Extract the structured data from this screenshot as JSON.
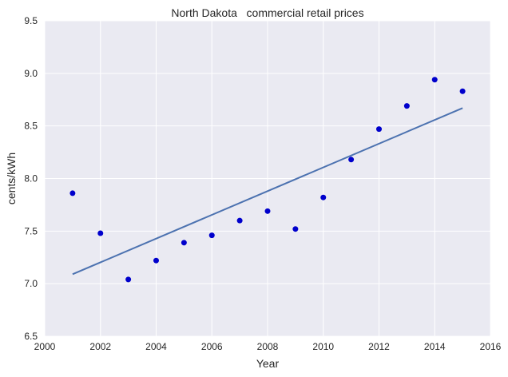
{
  "chart_data": {
    "type": "scatter",
    "title": "North Dakota   commercial retail prices",
    "xlabel": "Year",
    "ylabel": "cents/kWh",
    "xlim": [
      2000,
      2016
    ],
    "ylim": [
      6.5,
      9.5
    ],
    "xticks": [
      "2000",
      "2002",
      "2004",
      "2006",
      "2008",
      "2010",
      "2012",
      "2014",
      "2016"
    ],
    "yticks": [
      "6.5",
      "7.0",
      "7.5",
      "8.0",
      "8.5",
      "9.0",
      "9.5"
    ],
    "grid": true,
    "background": "#eaeaf2",
    "series": [
      {
        "type": "scatter",
        "color": "#0000cc",
        "x": [
          2001,
          2002,
          2003,
          2004,
          2005,
          2006,
          2007,
          2008,
          2009,
          2010,
          2011,
          2012,
          2013,
          2014,
          2015
        ],
        "y": [
          7.86,
          7.48,
          7.04,
          7.22,
          7.39,
          7.46,
          7.6,
          7.69,
          7.52,
          7.82,
          8.18,
          8.47,
          8.69,
          8.94,
          8.83
        ]
      },
      {
        "type": "line",
        "color": "#4c72b0",
        "x": [
          2001,
          2015
        ],
        "y": [
          7.09,
          8.67
        ]
      }
    ]
  }
}
